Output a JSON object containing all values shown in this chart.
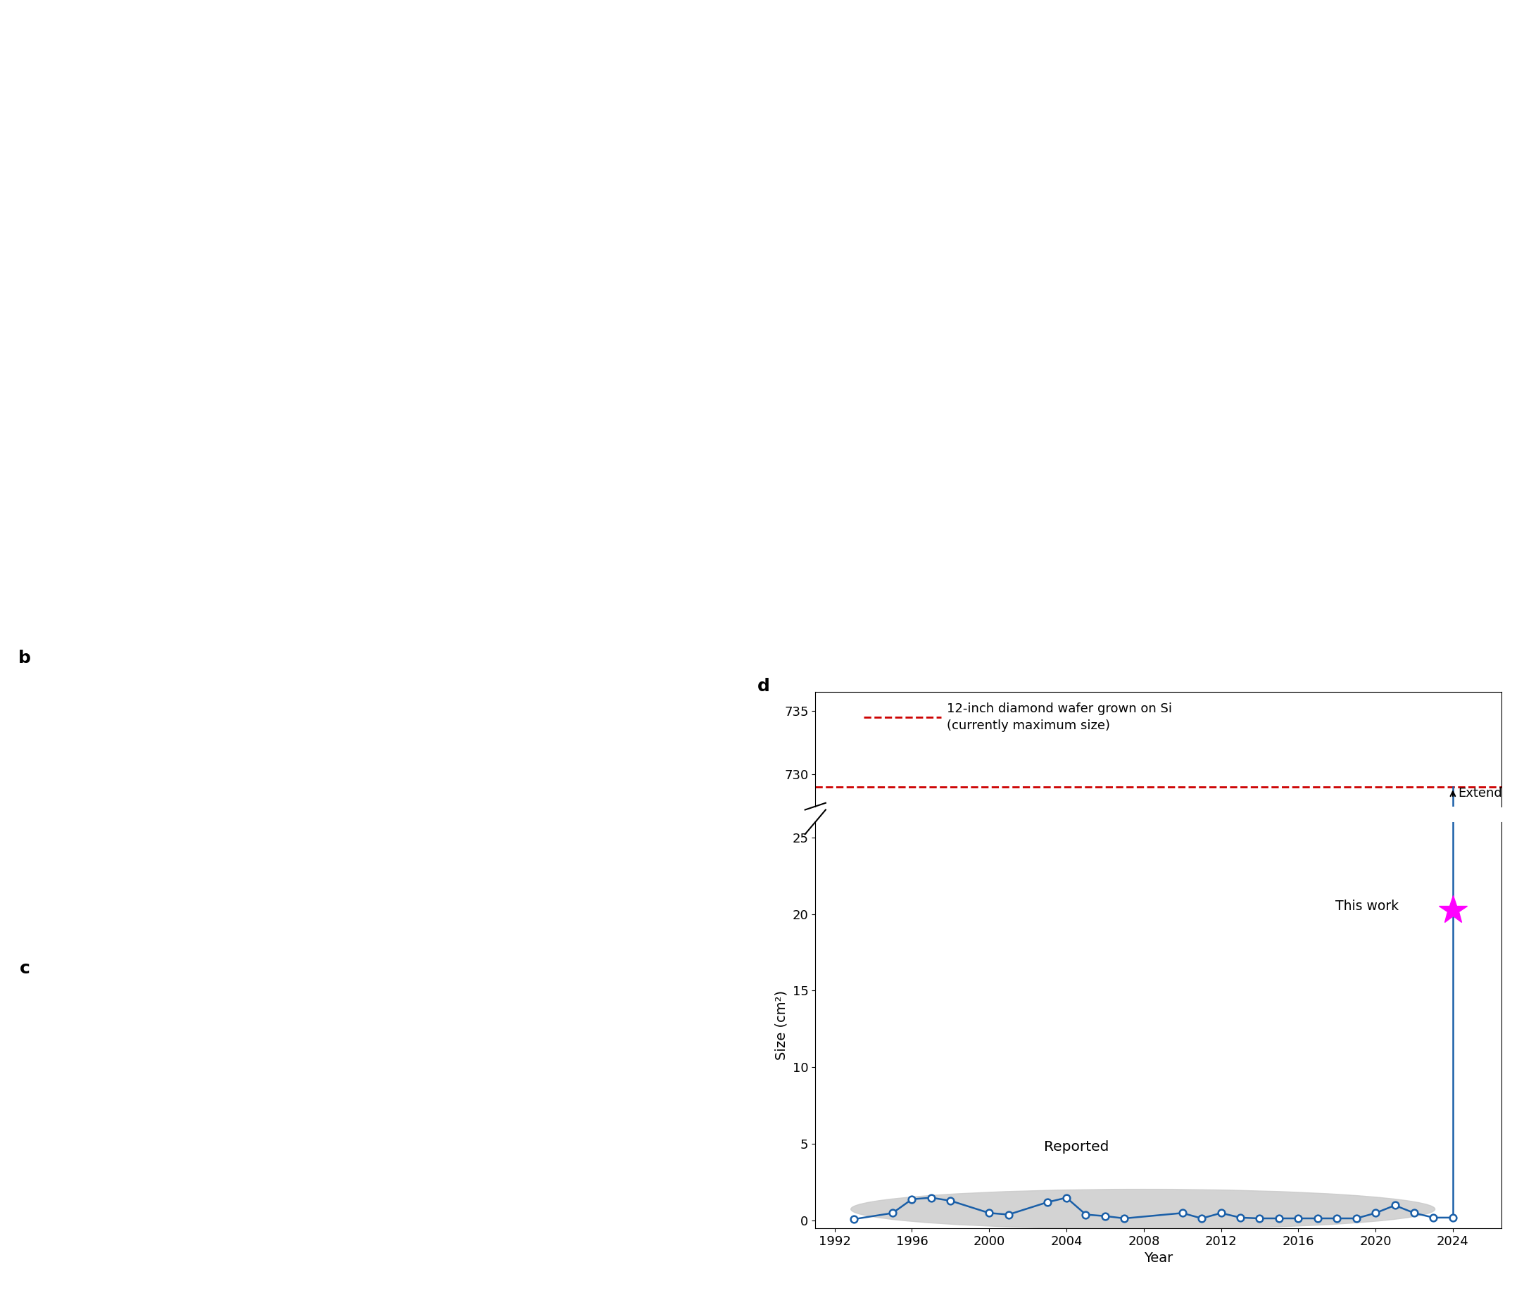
{
  "xlabel": "Year",
  "ylabel": "Size (cm²)",
  "dashed_line_value": 729.0,
  "dashed_line_color": "#cc0000",
  "legend_text_line1": "12-inch diamond wafer grown on Si",
  "legend_text_line2": "(currently maximum size)",
  "reported_label": "Reported",
  "this_work_label": "This work",
  "this_work_year": 2024,
  "this_work_value": 20.27,
  "extend_label": "Extend",
  "line_color": "#1a5fa8",
  "star_color": "#ff00ff",
  "ellipse_color": "#c8c8c8",
  "reported_data": [
    [
      1993,
      0.1
    ],
    [
      1995,
      0.5
    ],
    [
      1996,
      1.4
    ],
    [
      1997,
      1.5
    ],
    [
      1998,
      1.3
    ],
    [
      2000,
      0.5
    ],
    [
      2001,
      0.4
    ],
    [
      2003,
      1.2
    ],
    [
      2004,
      1.5
    ],
    [
      2005,
      0.4
    ],
    [
      2006,
      0.3
    ],
    [
      2007,
      0.15
    ],
    [
      2010,
      0.5
    ],
    [
      2011,
      0.15
    ],
    [
      2012,
      0.5
    ],
    [
      2013,
      0.2
    ],
    [
      2014,
      0.15
    ],
    [
      2015,
      0.15
    ],
    [
      2016,
      0.15
    ],
    [
      2017,
      0.15
    ],
    [
      2018,
      0.15
    ],
    [
      2019,
      0.15
    ],
    [
      2020,
      0.5
    ],
    [
      2021,
      1.0
    ],
    [
      2022,
      0.5
    ],
    [
      2023,
      0.2
    ],
    [
      2024,
      0.2
    ]
  ],
  "yticks_lower": [
    0,
    5,
    10,
    15,
    20,
    25
  ],
  "yticks_upper": [
    730,
    735
  ],
  "xticks": [
    1992,
    1996,
    2000,
    2004,
    2008,
    2012,
    2016,
    2020,
    2024
  ],
  "xlim": [
    1991,
    2026.5
  ],
  "ylim_lower": [
    -0.5,
    26
  ],
  "ylim_upper": [
    727.5,
    736.5
  ],
  "lower_height_ratio": 0.78,
  "upper_height_ratio": 0.22,
  "panel_label": "d"
}
